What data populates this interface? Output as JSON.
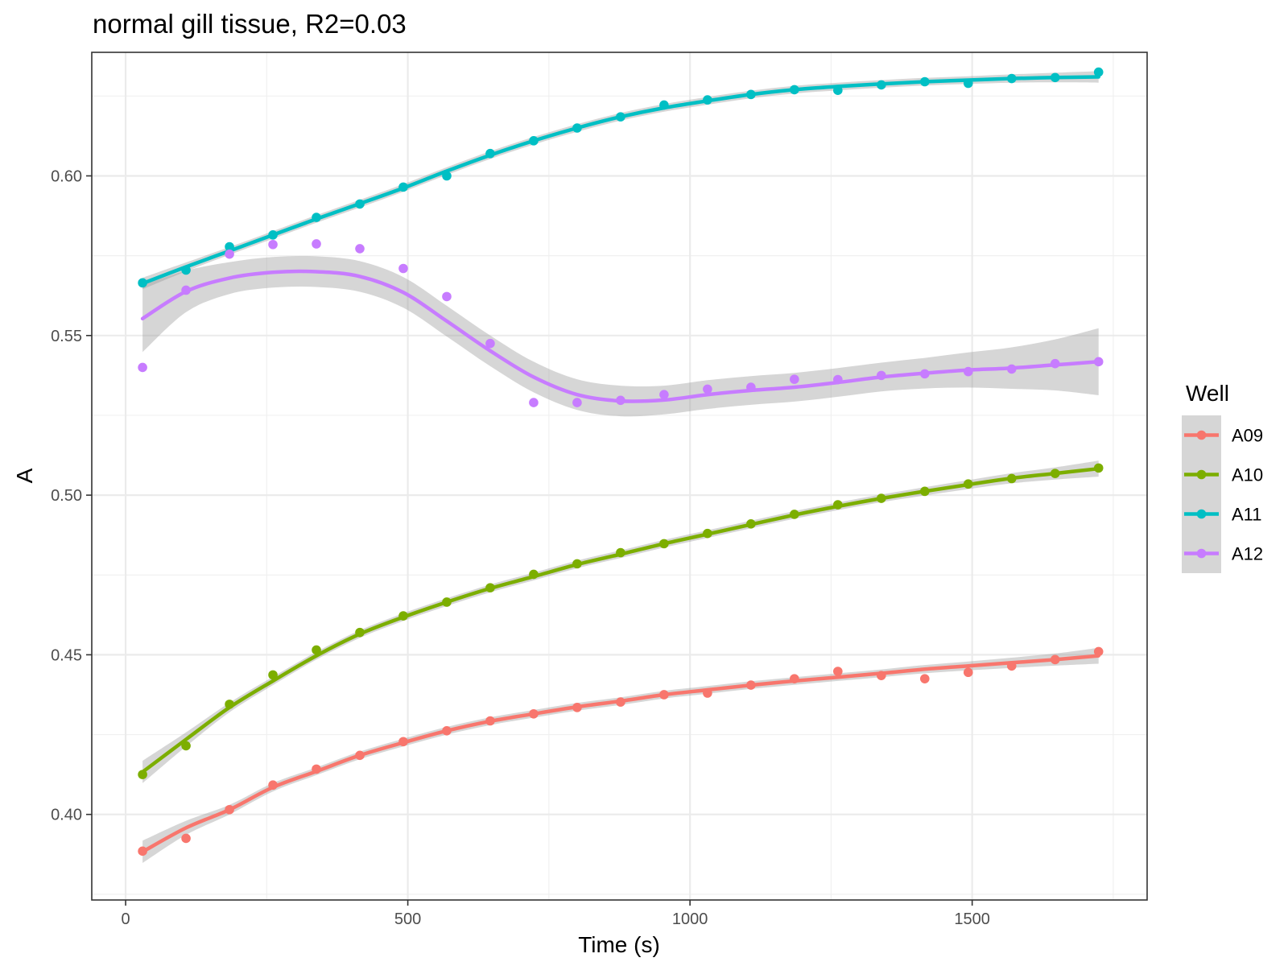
{
  "chart_data": {
    "type": "line",
    "title": "normal gill tissue, R2=0.03",
    "xlabel": "Time (s)",
    "ylabel": "A",
    "xlim": [
      -60,
      1810
    ],
    "ylim": [
      0.3732,
      0.6387
    ],
    "x_ticks": [
      0,
      500,
      1000,
      1500
    ],
    "x_tick_labels": [
      "0",
      "500",
      "1000",
      "1500"
    ],
    "y_ticks": [
      0.4,
      0.45,
      0.5,
      0.55,
      0.6
    ],
    "y_tick_labels": [
      "0.40",
      "0.45",
      "0.50",
      "0.55",
      "0.60"
    ],
    "grid": true,
    "legend": {
      "title": "Well",
      "position": "right"
    },
    "x": [
      30,
      107,
      184,
      261,
      338,
      415,
      492,
      569,
      646,
      723,
      800,
      877,
      954,
      1031,
      1108,
      1185,
      1262,
      1339,
      1416,
      1493,
      1570,
      1647,
      1724
    ],
    "series": [
      {
        "name": "A09",
        "color": "#F8766D",
        "points": [
          0.3885,
          0.3925,
          0.4015,
          0.4092,
          0.4142,
          0.4185,
          0.4228,
          0.4262,
          0.4293,
          0.4315,
          0.4335,
          0.4352,
          0.4375,
          0.438,
          0.4405,
          0.4425,
          0.4448,
          0.4435,
          0.4425,
          0.4445,
          0.4465,
          0.4485,
          0.451
        ],
        "smooth": [
          0.3883,
          0.3958,
          0.4015,
          0.4085,
          0.4135,
          0.4185,
          0.4225,
          0.4262,
          0.4292,
          0.4315,
          0.4337,
          0.4355,
          0.4375,
          0.439,
          0.4405,
          0.4418,
          0.443,
          0.4442,
          0.4455,
          0.4465,
          0.4475,
          0.4485,
          0.4497
        ],
        "band": [
          0.0035,
          0.0022,
          0.0015,
          0.0013,
          0.0012,
          0.0012,
          0.0012,
          0.0012,
          0.0012,
          0.0012,
          0.0012,
          0.0012,
          0.0012,
          0.0012,
          0.0012,
          0.0012,
          0.0012,
          0.0012,
          0.0013,
          0.0014,
          0.0016,
          0.0019,
          0.0025
        ]
      },
      {
        "name": "A10",
        "color": "#7CAE00",
        "points": [
          0.4125,
          0.4215,
          0.4345,
          0.4437,
          0.4515,
          0.457,
          0.4622,
          0.4665,
          0.471,
          0.4752,
          0.4785,
          0.482,
          0.4848,
          0.488,
          0.491,
          0.494,
          0.497,
          0.499,
          0.5012,
          0.5035,
          0.5052,
          0.5068,
          0.5085
        ],
        "smooth": [
          0.4133,
          0.4235,
          0.4335,
          0.4418,
          0.4497,
          0.4565,
          0.4618,
          0.4665,
          0.4708,
          0.4745,
          0.4783,
          0.4815,
          0.4848,
          0.4878,
          0.4908,
          0.4938,
          0.4965,
          0.499,
          0.5012,
          0.5033,
          0.5053,
          0.5068,
          0.5083
        ],
        "band": [
          0.0035,
          0.0022,
          0.0015,
          0.0013,
          0.0012,
          0.0012,
          0.0012,
          0.0012,
          0.0012,
          0.0012,
          0.0012,
          0.0012,
          0.0012,
          0.0012,
          0.0012,
          0.0012,
          0.0012,
          0.0012,
          0.0013,
          0.0014,
          0.0016,
          0.0019,
          0.0025
        ]
      },
      {
        "name": "A11",
        "color": "#00BFC4",
        "points": [
          0.5665,
          0.5705,
          0.5778,
          0.5815,
          0.587,
          0.5912,
          0.5965,
          0.6,
          0.607,
          0.611,
          0.615,
          0.6185,
          0.6222,
          0.6238,
          0.6255,
          0.627,
          0.6268,
          0.6285,
          0.6295,
          0.629,
          0.6305,
          0.6308,
          0.6325
        ],
        "smooth": [
          0.5663,
          0.5715,
          0.5765,
          0.5815,
          0.5865,
          0.5913,
          0.5962,
          0.6015,
          0.6065,
          0.611,
          0.615,
          0.6185,
          0.6213,
          0.6235,
          0.6255,
          0.627,
          0.628,
          0.6288,
          0.6295,
          0.63,
          0.6305,
          0.6308,
          0.631
        ],
        "band": [
          0.0018,
          0.0014,
          0.0012,
          0.0012,
          0.0012,
          0.0012,
          0.0012,
          0.0012,
          0.0012,
          0.0012,
          0.0012,
          0.0012,
          0.0012,
          0.0012,
          0.0012,
          0.0012,
          0.0012,
          0.0012,
          0.0012,
          0.0012,
          0.0013,
          0.0015,
          0.0018
        ]
      },
      {
        "name": "A12",
        "color": "#C77CFF",
        "points": [
          0.54,
          0.5642,
          0.5755,
          0.5785,
          0.5787,
          0.5772,
          0.571,
          0.5622,
          0.5475,
          0.529,
          0.529,
          0.5297,
          0.5315,
          0.5332,
          0.5338,
          0.5363,
          0.5362,
          0.5375,
          0.538,
          0.5387,
          0.5395,
          0.5412,
          0.5418
        ],
        "smooth": [
          0.5553,
          0.5638,
          0.568,
          0.5698,
          0.57,
          0.5685,
          0.5635,
          0.5545,
          0.5452,
          0.537,
          0.5315,
          0.5295,
          0.5298,
          0.5315,
          0.5328,
          0.5338,
          0.5353,
          0.537,
          0.5382,
          0.5392,
          0.5398,
          0.5408,
          0.5418
        ],
        "band": [
          0.0105,
          0.0065,
          0.005,
          0.0048,
          0.0048,
          0.0048,
          0.0048,
          0.0048,
          0.0048,
          0.0048,
          0.0048,
          0.0048,
          0.0045,
          0.0045,
          0.0045,
          0.0045,
          0.0045,
          0.0045,
          0.0048,
          0.0055,
          0.0065,
          0.008,
          0.0105
        ]
      }
    ]
  }
}
